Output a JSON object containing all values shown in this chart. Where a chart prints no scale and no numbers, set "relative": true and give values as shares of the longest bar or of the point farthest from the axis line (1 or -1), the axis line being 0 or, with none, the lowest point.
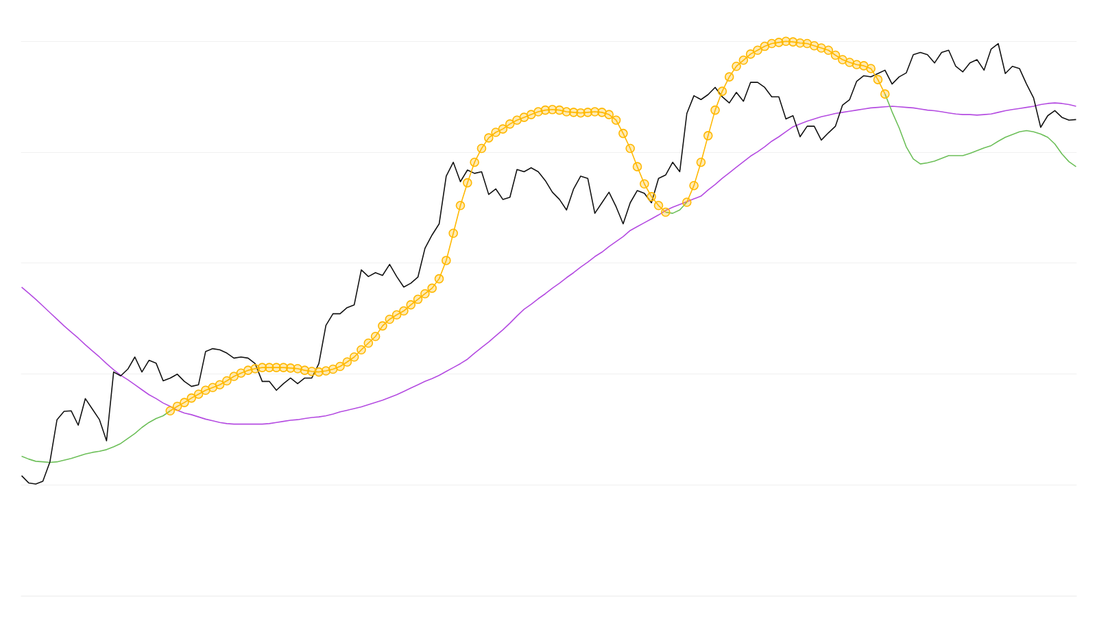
{
  "chart_data": {
    "type": "line",
    "relative": true,
    "grid": "y",
    "categories": [
      null,
      null,
      null,
      null,
      null,
      null,
      null,
      null,
      null,
      null,
      null,
      null,
      null,
      null,
      null,
      null,
      null,
      null,
      null,
      null,
      null,
      null,
      null,
      null,
      null,
      null,
      null,
      null,
      null,
      null,
      null,
      null,
      null,
      null,
      null,
      null,
      null,
      null,
      null,
      null,
      null,
      null,
      null,
      null,
      null,
      null,
      null,
      null,
      null,
      null,
      null,
      null,
      null,
      null,
      null,
      null,
      null,
      null,
      null,
      null,
      null,
      null,
      null,
      null,
      null,
      null,
      null,
      null,
      null,
      null,
      null,
      null,
      null,
      null,
      null,
      null,
      null,
      null,
      null,
      null,
      null,
      null,
      null,
      null,
      null,
      null,
      null,
      null,
      null,
      null,
      null,
      null,
      null,
      null,
      null,
      null,
      null,
      null,
      null,
      null,
      null,
      null,
      null,
      null,
      null,
      null,
      null,
      null,
      null,
      null,
      null,
      null,
      null,
      null,
      null,
      null,
      null,
      null,
      null,
      null,
      null,
      null,
      null,
      null,
      null,
      null,
      null,
      null,
      null,
      null,
      null,
      null,
      null,
      null,
      null,
      null,
      null,
      null,
      null,
      null,
      null,
      null,
      null,
      null,
      null,
      null,
      null,
      null,
      null,
      null
    ],
    "series": [
      {
        "color": "#b44be1",
        "values": [
          0.557,
          0.546,
          0.535,
          0.523,
          0.511,
          0.499,
          0.487,
          0.476,
          0.465,
          0.453,
          0.442,
          0.431,
          0.419,
          0.408,
          0.398,
          0.39,
          0.381,
          0.372,
          0.363,
          0.356,
          0.348,
          0.342,
          0.335,
          0.33,
          0.327,
          0.323,
          0.319,
          0.316,
          0.313,
          0.311,
          0.31,
          0.31,
          0.31,
          0.31,
          0.31,
          0.311,
          0.313,
          0.315,
          0.317,
          0.318,
          0.32,
          0.322,
          0.323,
          0.325,
          0.328,
          0.332,
          0.335,
          0.338,
          0.341,
          0.345,
          0.349,
          0.353,
          0.358,
          0.363,
          0.369,
          0.375,
          0.381,
          0.387,
          0.392,
          0.398,
          0.405,
          0.412,
          0.419,
          0.427,
          0.438,
          0.448,
          0.458,
          0.469,
          0.48,
          0.492,
          0.505,
          0.517,
          0.526,
          0.536,
          0.545,
          0.555,
          0.564,
          0.574,
          0.583,
          0.593,
          0.602,
          0.612,
          0.62,
          0.63,
          0.639,
          0.648,
          0.659,
          0.666,
          0.673,
          0.68,
          0.687,
          0.695,
          0.701,
          0.706,
          0.711,
          0.716,
          0.721,
          0.732,
          0.742,
          0.753,
          0.763,
          0.773,
          0.783,
          0.793,
          0.801,
          0.81,
          0.82,
          0.828,
          0.837,
          0.846,
          0.851,
          0.856,
          0.86,
          0.864,
          0.867,
          0.87,
          0.872,
          0.874,
          0.876,
          0.878,
          0.88,
          0.881,
          0.882,
          0.883,
          0.882,
          0.881,
          0.88,
          0.878,
          0.876,
          0.875,
          0.873,
          0.871,
          0.869,
          0.868,
          0.868,
          0.867,
          0.868,
          0.869,
          0.872,
          0.875,
          0.877,
          0.879,
          0.881,
          0.883,
          0.886,
          0.888,
          0.889,
          0.888,
          0.886,
          0.883
        ]
      },
      {
        "color": "#6cbf58",
        "values": [
          0.252,
          0.247,
          0.243,
          0.242,
          0.241,
          0.242,
          0.245,
          0.248,
          0.252,
          0.256,
          0.259,
          0.261,
          0.264,
          0.269,
          0.275,
          0.284,
          0.293,
          0.304,
          0.313,
          0.32,
          0.325,
          0.334,
          null,
          null,
          null,
          null,
          null,
          null,
          null,
          null,
          null,
          null,
          null,
          null,
          null,
          null,
          null,
          null,
          null,
          null,
          null,
          null,
          null,
          null,
          null,
          null,
          null,
          null,
          null,
          null,
          null,
          null,
          null,
          null,
          null,
          null,
          null,
          null,
          null,
          null,
          null,
          null,
          null,
          null,
          null,
          null,
          null,
          null,
          null,
          null,
          null,
          null,
          null,
          null,
          null,
          null,
          null,
          null,
          null,
          null,
          null,
          null,
          null,
          null,
          null,
          null,
          null,
          null,
          null,
          null,
          null,
          0.692,
          0.69,
          0.696,
          0.71,
          null,
          null,
          null,
          null,
          null,
          null,
          null,
          null,
          null,
          null,
          null,
          null,
          null,
          null,
          null,
          null,
          null,
          null,
          null,
          null,
          null,
          null,
          null,
          null,
          null,
          null,
          null,
          0.905,
          0.873,
          0.844,
          0.81,
          0.788,
          0.779,
          0.781,
          0.784,
          0.789,
          0.794,
          0.794,
          0.794,
          0.798,
          0.803,
          0.808,
          0.812,
          0.82,
          0.827,
          0.832,
          0.837,
          0.839,
          0.837,
          0.833,
          0.827,
          0.815,
          0.797,
          0.783,
          0.774
        ]
      },
      {
        "color": "#111111",
        "values": [
          0.217,
          0.204,
          0.202,
          0.207,
          0.242,
          0.318,
          0.333,
          0.334,
          0.308,
          0.356,
          0.337,
          0.318,
          0.28,
          0.404,
          0.397,
          0.409,
          0.431,
          0.404,
          0.425,
          0.42,
          0.388,
          0.393,
          0.4,
          0.387,
          0.378,
          0.381,
          0.441,
          0.446,
          0.444,
          0.438,
          0.429,
          0.431,
          0.429,
          0.419,
          0.387,
          0.387,
          0.371,
          0.383,
          0.393,
          0.383,
          0.393,
          0.393,
          0.419,
          0.488,
          0.509,
          0.509,
          0.52,
          0.525,
          0.588,
          0.576,
          0.583,
          0.578,
          0.598,
          0.576,
          0.557,
          0.564,
          0.575,
          0.627,
          0.651,
          0.671,
          0.757,
          0.782,
          0.747,
          0.768,
          0.762,
          0.765,
          0.724,
          0.734,
          0.715,
          0.719,
          0.769,
          0.765,
          0.772,
          0.765,
          0.749,
          0.728,
          0.715,
          0.696,
          0.734,
          0.757,
          0.753,
          0.69,
          0.709,
          0.728,
          0.702,
          0.671,
          0.709,
          0.731,
          0.726,
          0.709,
          0.753,
          0.759,
          0.782,
          0.765,
          0.87,
          0.902,
          0.895,
          0.904,
          0.917,
          0.9,
          0.889,
          0.908,
          0.892,
          0.926,
          0.926,
          0.917,
          0.9,
          0.9,
          0.86,
          0.866,
          0.828,
          0.847,
          0.847,
          0.822,
          0.835,
          0.847,
          0.885,
          0.895,
          0.928,
          0.938,
          0.936,
          0.942,
          0.948,
          0.923,
          0.936,
          0.943,
          0.976,
          0.98,
          0.976,
          0.961,
          0.98,
          0.984,
          0.955,
          0.945,
          0.961,
          0.967,
          0.948,
          0.986,
          0.996,
          0.942,
          0.955,
          0.951,
          0.923,
          0.898,
          0.845,
          0.866,
          0.875,
          0.863,
          0.858,
          0.859
        ]
      },
      {
        "color": "#ffb800",
        "marker": "circle",
        "values": [
          null,
          null,
          null,
          null,
          null,
          null,
          null,
          null,
          null,
          null,
          null,
          null,
          null,
          null,
          null,
          null,
          null,
          null,
          null,
          null,
          null,
          0.334,
          0.342,
          0.349,
          0.357,
          0.364,
          0.371,
          0.376,
          0.381,
          0.388,
          0.396,
          0.402,
          0.407,
          0.41,
          0.412,
          0.412,
          0.412,
          0.412,
          0.411,
          0.41,
          0.407,
          0.405,
          0.404,
          0.406,
          0.409,
          0.414,
          0.422,
          0.431,
          0.444,
          0.456,
          0.468,
          0.487,
          0.499,
          0.507,
          0.514,
          0.525,
          0.535,
          0.545,
          0.555,
          0.572,
          0.605,
          0.654,
          0.704,
          0.745,
          0.782,
          0.807,
          0.826,
          0.836,
          0.842,
          0.851,
          0.858,
          0.863,
          0.868,
          0.873,
          0.876,
          0.877,
          0.876,
          0.873,
          0.872,
          0.871,
          0.872,
          0.873,
          0.872,
          0.868,
          0.858,
          0.834,
          0.807,
          0.774,
          0.743,
          0.72,
          0.704,
          0.692,
          null,
          null,
          0.71,
          0.74,
          0.782,
          0.83,
          0.876,
          0.91,
          0.936,
          0.955,
          0.966,
          0.977,
          0.984,
          0.991,
          0.996,
          0.998,
          1.0,
          0.999,
          0.997,
          0.996,
          0.992,
          0.988,
          0.984,
          0.975,
          0.967,
          0.962,
          0.958,
          0.956,
          0.951,
          0.931,
          0.905,
          null,
          null,
          null,
          null,
          null,
          null,
          null,
          null,
          null,
          null,
          null,
          null,
          null,
          null,
          null,
          null,
          null,
          null,
          null,
          null,
          null,
          null,
          null,
          null,
          null,
          null,
          null
        ]
      }
    ]
  }
}
